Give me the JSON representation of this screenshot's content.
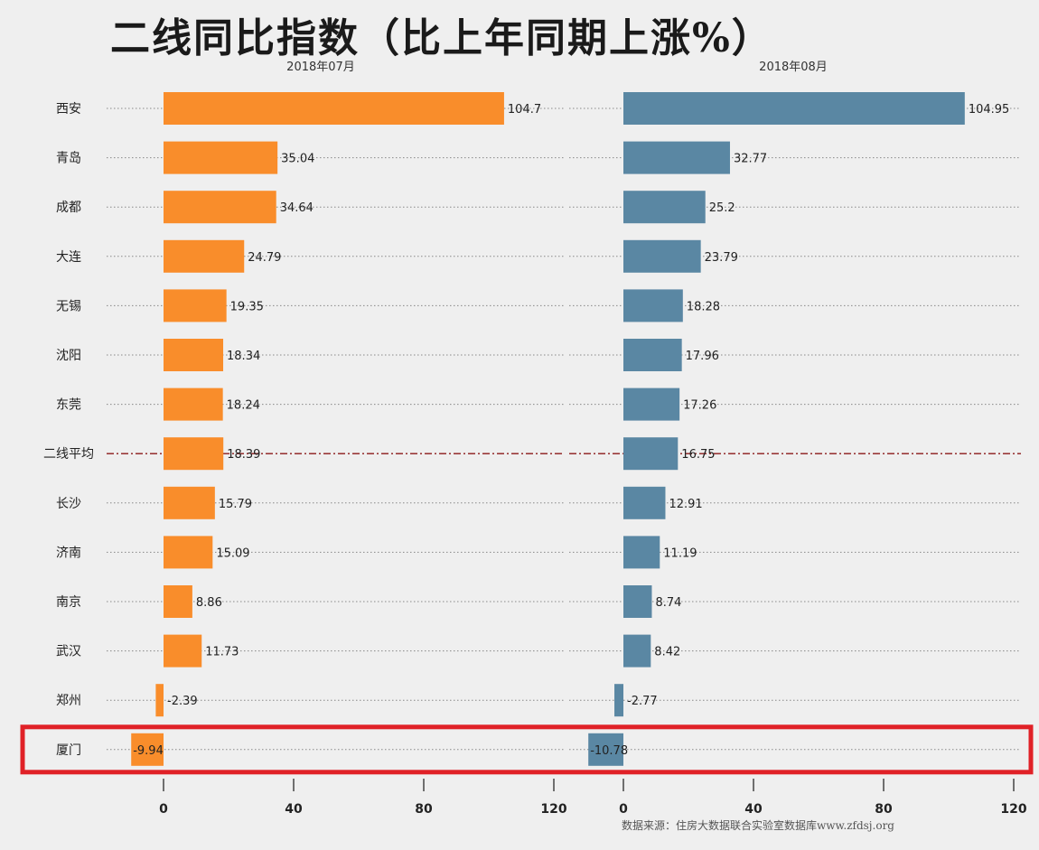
{
  "chart_data": {
    "type": "bar",
    "orientation": "horizontal",
    "title": "二线同比指数（比上年同期上涨%）",
    "source": "数据来源：住房大数据联合实验室数据库www.zfdsj.org",
    "categories": [
      "西安",
      "青岛",
      "成都",
      "大连",
      "无锡",
      "沈阳",
      "东莞",
      "二线平均",
      "长沙",
      "济南",
      "南京",
      "武汉",
      "郑州",
      "厦门"
    ],
    "series": [
      {
        "name": "2018年07月",
        "color": "#f98d2b",
        "values": [
          104.7,
          35.04,
          34.64,
          24.79,
          19.35,
          18.34,
          18.24,
          18.39,
          15.79,
          15.09,
          8.86,
          11.73,
          -2.39,
          -9.94
        ],
        "labels": [
          "104.7",
          "35.04",
          "34.64",
          "24.79",
          "19.35",
          "18.34",
          "18.24",
          "18.39",
          "15.79",
          "15.09",
          "8.86",
          "11.73",
          "-2.39",
          "-9.94"
        ]
      },
      {
        "name": "2018年08月",
        "color": "#5a87a3",
        "values": [
          104.95,
          32.77,
          25.2,
          23.79,
          18.28,
          17.96,
          17.26,
          16.75,
          12.91,
          11.19,
          8.74,
          8.42,
          -2.77,
          -10.78
        ],
        "labels": [
          "104.95",
          "32.77",
          "25.2",
          "23.79",
          "18.28",
          "17.96",
          "17.26",
          "16.75",
          "12.91",
          "11.19",
          "8.74",
          "8.42",
          "-2.77",
          "-10.78"
        ]
      }
    ],
    "xticks": [
      "0",
      "40",
      "80",
      "120"
    ],
    "xtick_values": [
      0,
      40,
      80,
      120
    ],
    "xlim": [
      -10,
      120
    ],
    "average_category": "二线平均",
    "highlighted_category": "厦门",
    "highlight_color": "#e02127",
    "average_line_color": "#8b1a1a"
  }
}
